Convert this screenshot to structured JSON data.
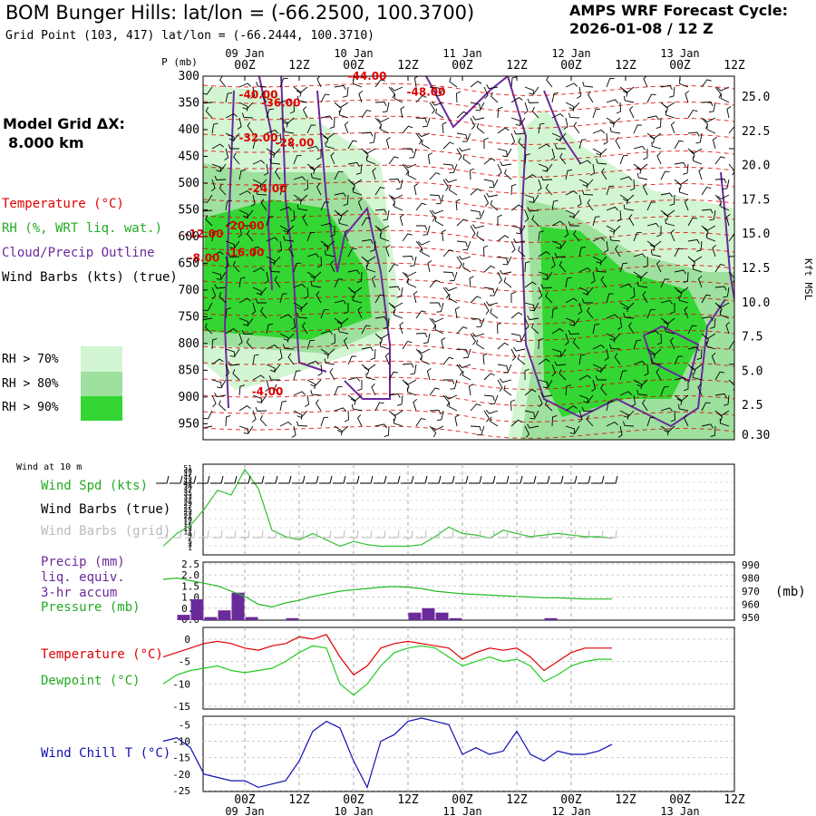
{
  "header": {
    "title": "BOM Bunger Hills:  lat/lon = (-66.2500, 100.3700)",
    "grid_point": "Grid Point (103, 417) lat/lon = (-66.2444, 100.3710)",
    "cycle_line1": "AMPS WRF Forecast Cycle:",
    "cycle_line2": "2026-01-08 / 12  Z"
  },
  "model": {
    "line1": "Model Grid ΔX:",
    "line2": "8.000 km"
  },
  "legend": {
    "temperature": "Temperature (°C)",
    "rh": "RH (%, WRT liq. wat.)",
    "cloud": "Cloud/Precip Outline",
    "barbs": "Wind Barbs (kts) (true)",
    "rh70": "RH > 70%",
    "rh80": "RH > 80%",
    "rh90": "RH > 90%",
    "p_label": "P (mb)",
    "kft_label": "Kft MSL"
  },
  "colors": {
    "temperature": "#e00000",
    "rh70": "#d2f5d2",
    "rh80": "#9ee09e",
    "rh90": "#33d633",
    "cloud": "#6a2a9a",
    "wind_speed": "#33c033",
    "precip_bar": "#6a2a9a",
    "pressure": "#22bb22",
    "temp_line": "#e00000",
    "dew_line": "#22cc22",
    "wind_chill": "#1010b0"
  },
  "time_axis": {
    "labels": [
      "00Z",
      "12Z",
      "00Z",
      "12Z",
      "00Z",
      "12Z",
      "00Z",
      "12Z",
      "00Z",
      "12Z"
    ],
    "dates": [
      "09 Jan",
      "10 Jan",
      "11 Jan",
      "12 Jan",
      "13 Jan"
    ]
  },
  "panel_labels": {
    "wind10m": "Wind at 10 m",
    "wind_spd": "Wind Spd (kts)",
    "wind_barbs_true": "Wind Barbs (true)",
    "wind_barbs_grid": "Wind Barbs (grid)",
    "precip1": "Precip (mm)",
    "precip2": "liq. equiv.",
    "precip3": "3-hr accum",
    "pressure": "Pressure (mb)",
    "pressure_unit": "(mb)",
    "temperature": "Temperature (°C)",
    "dewpoint": "Dewpoint (°C)",
    "wind_chill": "Wind Chill T (°C)"
  },
  "chart_data": [
    {
      "type": "heatmap",
      "name": "cross-section",
      "pressure_ticks": [
        300,
        350,
        400,
        450,
        500,
        550,
        600,
        650,
        700,
        750,
        800,
        850,
        900,
        950
      ],
      "kft_ticks": [
        "25.0",
        "22.5",
        "20.0",
        "17.5",
        "15.0",
        "12.5",
        "10.0",
        "7.5",
        "5.0",
        "2.5",
        "0.30"
      ],
      "temp_contour_labels": [
        {
          "label": "-44.00",
          "time_h": 27,
          "p": 300
        },
        {
          "label": "-48.00",
          "time_h": 40,
          "p": 330
        },
        {
          "label": "-40.00",
          "time_h": 3,
          "p": 335
        },
        {
          "label": "-36.00",
          "time_h": 8,
          "p": 350
        },
        {
          "label": "-32.00",
          "time_h": 3,
          "p": 415
        },
        {
          "label": "-28.00",
          "time_h": 11,
          "p": 425
        },
        {
          "label": "-24.00",
          "time_h": 5,
          "p": 510
        },
        {
          "label": "-20.00",
          "time_h": 0,
          "p": 580
        },
        {
          "label": "-12.00",
          "time_h": -9,
          "p": 595
        },
        {
          "label": "-16.00",
          "time_h": 0,
          "p": 630
        },
        {
          "label": "-8.00",
          "time_h": -9,
          "p": 640
        },
        {
          "label": "-4.00",
          "time_h": 5,
          "p": 890
        }
      ]
    },
    {
      "type": "line",
      "name": "wind-speed",
      "y_ticks": [
        1,
        3,
        5,
        7,
        9,
        11,
        13,
        15,
        17,
        19,
        21,
        23,
        25,
        27,
        29,
        31,
        33,
        35,
        37,
        39,
        41,
        43,
        45,
        47,
        49,
        51
      ],
      "ylim": [
        0,
        51
      ],
      "x_hours": [
        -18,
        -15,
        -12,
        -9,
        -6,
        -3,
        0,
        3,
        6,
        9,
        12,
        15,
        18,
        21,
        24,
        27,
        30,
        33,
        36,
        39,
        42,
        45,
        48,
        51,
        54,
        57,
        60,
        63,
        66,
        69,
        72,
        75,
        78,
        81
      ],
      "values": [
        2,
        10,
        15,
        25,
        37,
        34,
        50,
        38,
        12,
        8,
        6,
        10,
        6,
        2,
        5,
        3,
        2,
        2,
        2,
        3,
        8,
        14,
        10,
        9,
        7,
        12,
        10,
        8,
        9,
        10,
        9,
        8,
        8,
        7
      ]
    },
    {
      "type": "bar",
      "name": "precip",
      "y_ticks": [
        "0.0",
        "0.5",
        "1.0",
        "1.5",
        "2.0",
        "2.5"
      ],
      "ylim": [
        0,
        2.5
      ],
      "x_hours": [
        -16.5,
        -13.5,
        -10.5,
        -7.5,
        -4.5,
        -1.5,
        1.5,
        4.5,
        7.5,
        10.5,
        13.5,
        16.5,
        19.5,
        22.5,
        25.5,
        28.5,
        31.5,
        34.5,
        37.5,
        40.5,
        43.5,
        46.5,
        49.5,
        52.5,
        55.5,
        58.5,
        61.5,
        64.5,
        67.5,
        70.5,
        73.5,
        76.5
      ],
      "values": [
        0,
        0.2,
        0.9,
        0.1,
        0.4,
        1.2,
        0.1,
        0,
        0,
        0.05,
        0,
        0,
        0,
        0,
        0,
        0,
        0,
        0,
        0.3,
        0.5,
        0.3,
        0.05,
        0,
        0,
        0,
        0,
        0,
        0,
        0.05,
        0,
        0,
        0
      ]
    },
    {
      "type": "line",
      "name": "pressure",
      "y_ticks": [
        "990",
        "980",
        "970",
        "960",
        "950"
      ],
      "ylim": [
        950,
        990
      ],
      "x_hours": [
        -18,
        -15,
        -12,
        -9,
        -6,
        -3,
        0,
        3,
        6,
        9,
        12,
        15,
        18,
        21,
        24,
        27,
        30,
        33,
        36,
        39,
        42,
        45,
        48,
        51,
        54,
        57,
        60,
        63,
        66,
        69,
        72,
        75,
        78,
        81
      ],
      "values": [
        979,
        980,
        978,
        976,
        974,
        970,
        966,
        960,
        958,
        961,
        963,
        966,
        968,
        970,
        971,
        972,
        973,
        973.5,
        973,
        972,
        970,
        969,
        968,
        967.5,
        967,
        966.5,
        966,
        965.5,
        965,
        965,
        964.5,
        964,
        964,
        964
      ]
    },
    {
      "type": "line",
      "name": "temperature-dewpoint",
      "y_ticks": [
        "0",
        "-5",
        "-10",
        "-15"
      ],
      "ylim": [
        -15,
        2
      ],
      "x_hours": [
        -18,
        -15,
        -12,
        -9,
        -6,
        -3,
        0,
        3,
        6,
        9,
        12,
        15,
        18,
        21,
        24,
        27,
        30,
        33,
        36,
        39,
        42,
        45,
        48,
        51,
        54,
        57,
        60,
        63,
        66,
        69,
        72,
        75,
        78,
        81
      ],
      "series": [
        {
          "name": "Temperature",
          "values": [
            -4,
            -3,
            -2,
            -1,
            -0.5,
            -1,
            -2,
            -2.5,
            -1.5,
            -1,
            0.5,
            0,
            1,
            -4,
            -8,
            -6,
            -2,
            -1,
            -0.5,
            -1,
            -1.5,
            -2,
            -4.5,
            -3,
            -2,
            -2.5,
            -2,
            -4,
            -7,
            -5,
            -3,
            -2,
            -2,
            -2
          ]
        },
        {
          "name": "Dewpoint",
          "values": [
            -10,
            -8,
            -7,
            -6.5,
            -6,
            -7,
            -7.5,
            -7,
            -6.5,
            -5,
            -3,
            -1.5,
            -2,
            -10,
            -12.5,
            -10,
            -6,
            -3,
            -2,
            -1.5,
            -2,
            -4,
            -6,
            -5,
            -4,
            -5,
            -4.5,
            -6,
            -9.5,
            -8,
            -6,
            -5,
            -4.5,
            -4.5
          ]
        }
      ]
    },
    {
      "type": "line",
      "name": "wind-chill",
      "y_ticks": [
        "-5",
        "-10",
        "-15",
        "-20",
        "-25"
      ],
      "ylim": [
        -25,
        -3
      ],
      "x_hours": [
        -18,
        -15,
        -12,
        -9,
        -6,
        -3,
        0,
        3,
        6,
        9,
        12,
        15,
        18,
        21,
        24,
        27,
        30,
        33,
        36,
        39,
        42,
        45,
        48,
        51,
        54,
        57,
        60,
        63,
        66,
        69,
        72,
        75,
        78,
        81
      ],
      "values": [
        -10,
        -9,
        -12,
        -20,
        -21,
        -22,
        -22,
        -24,
        -23,
        -22,
        -16,
        -7,
        -4,
        -6,
        -16,
        -24,
        -10,
        -8,
        -4,
        -3,
        -4,
        -5,
        -14,
        -12,
        -14,
        -13,
        -7,
        -14,
        -16,
        -13,
        -14,
        -14,
        -13,
        -11
      ]
    }
  ]
}
